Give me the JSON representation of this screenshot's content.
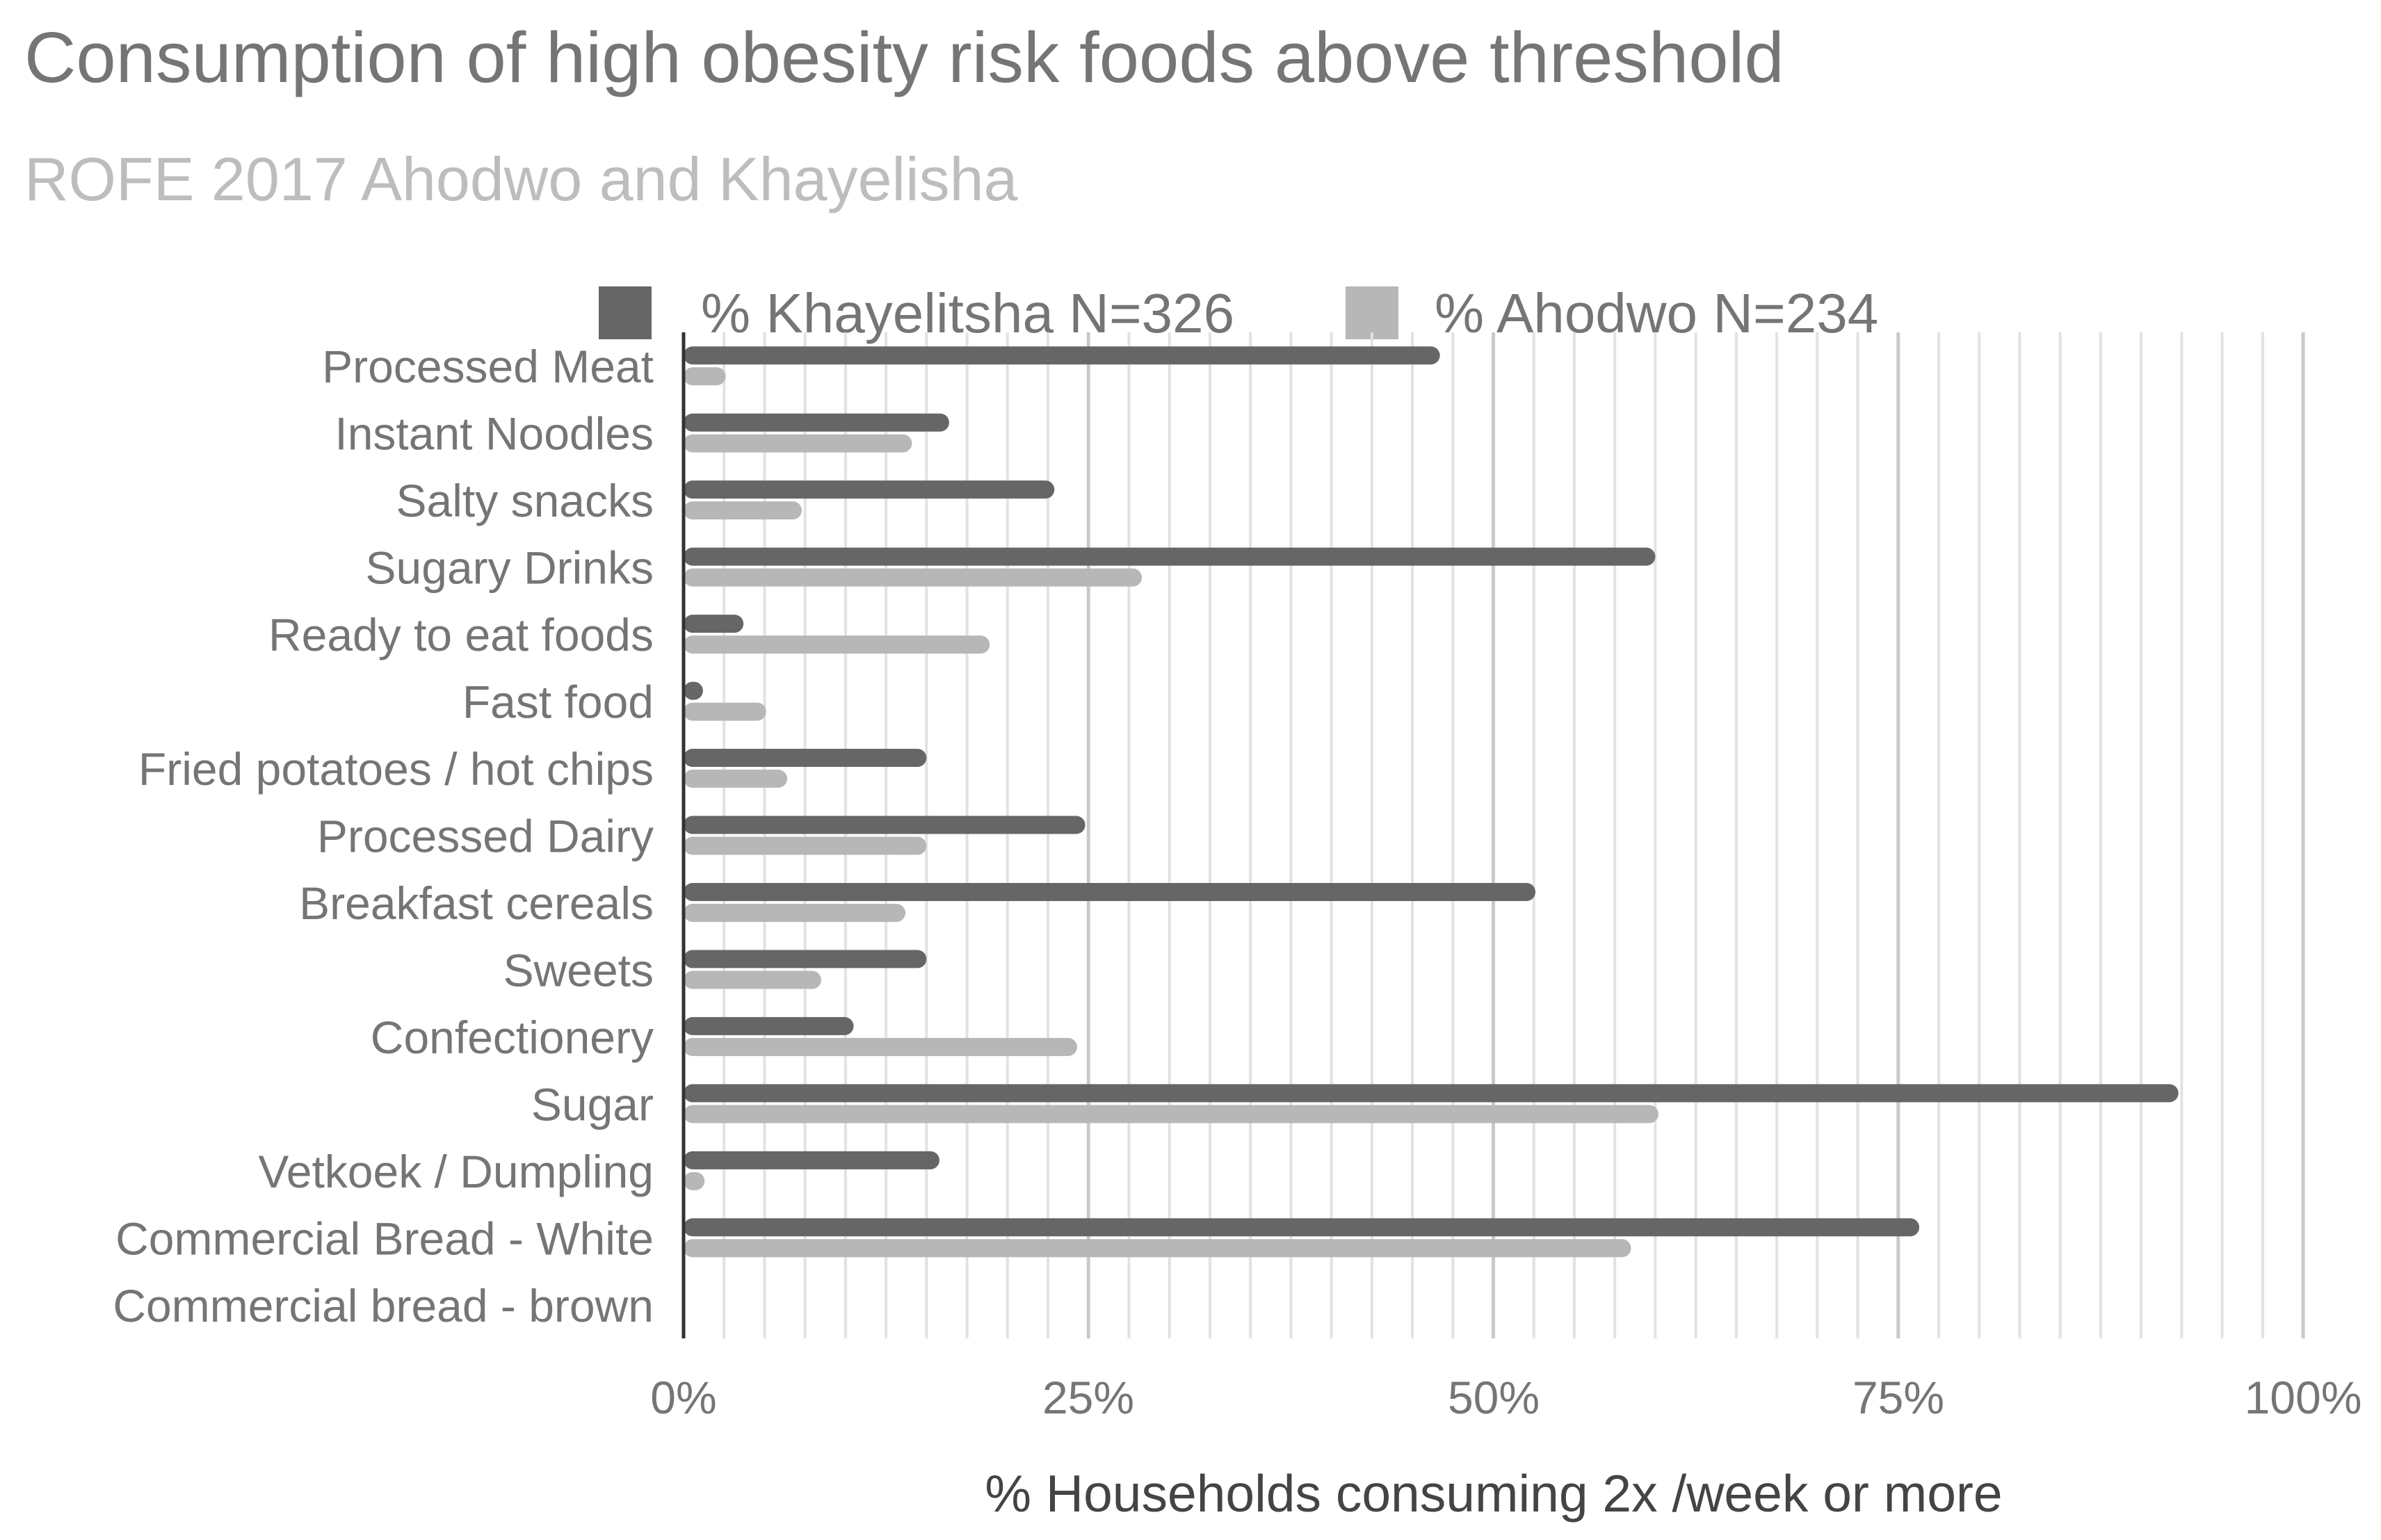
{
  "chart_data": {
    "type": "bar",
    "orientation": "horizontal",
    "title": "Consumption of high obesity risk foods above threshold",
    "subtitle": "ROFE 2017 Ahodwo and Khayelisha",
    "xlabel": "% Households consuming 2x /week or more",
    "ylabel": "",
    "xlim": [
      0,
      100
    ],
    "x_ticks": [
      "0%",
      "25%",
      "50%",
      "75%",
      "100%"
    ],
    "grid": true,
    "legend_position": "top",
    "categories": [
      "Processed Meat",
      "Instant Noodles",
      "Salty snacks",
      "Sugary Drinks",
      "Ready to eat foods",
      "Fast food",
      "Fried potatoes / hot chips",
      "Processed Dairy",
      "Breakfast cereals",
      "Sweets",
      "Confectionery",
      "Sugar",
      "Vetkoek / Dumpling",
      "Commercial Bread - White",
      "Commercial bread - brown"
    ],
    "series": [
      {
        "name": "% Khayelitsha N=326",
        "color": "#666666",
        "values": [
          46.7,
          16.4,
          22.9,
          60.0,
          3.7,
          1.2,
          15.0,
          24.8,
          52.6,
          15.0,
          10.5,
          92.3,
          15.8,
          76.3,
          0
        ]
      },
      {
        "name": "% Ahodwo N=234",
        "color": "#b7b7b7",
        "values": [
          2.6,
          14.1,
          7.3,
          28.3,
          18.9,
          5.1,
          6.4,
          15.0,
          13.7,
          8.5,
          24.3,
          60.2,
          1.3,
          58.5,
          0
        ]
      }
    ]
  }
}
